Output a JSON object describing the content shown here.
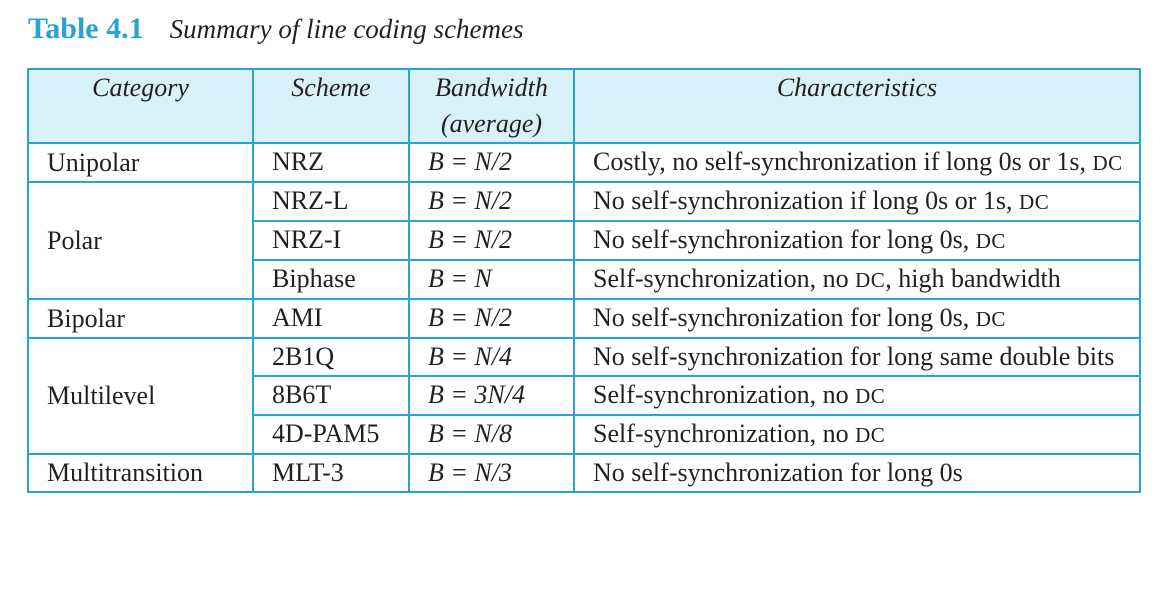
{
  "caption": {
    "label": "Table 4.1",
    "title": "Summary of line coding schemes"
  },
  "headers": {
    "category": "Category",
    "scheme": "Scheme",
    "bandwidth_line1": "Bandwidth",
    "bandwidth_line2": "(average)",
    "characteristics": "Characteristics"
  },
  "dc": "DC",
  "rows": [
    {
      "category": "Unipolar",
      "scheme": "NRZ",
      "bandwidth": "B = N/2",
      "text": "Costly, no self-synchronization if long 0s or 1s,"
    },
    {
      "category": "Polar",
      "scheme": "NRZ-L",
      "bandwidth": "B = N/2",
      "text": "No self-synchronization if long 0s or 1s,"
    },
    {
      "scheme": "NRZ-I",
      "bandwidth": "B = N/2",
      "text": "No self-synchronization for long 0s,"
    },
    {
      "scheme": "Biphase",
      "bandwidth": "B = N",
      "text_before": "Self-synchronization, no",
      "text_after": ", high bandwidth"
    },
    {
      "category": "Bipolar",
      "scheme": "AMI",
      "bandwidth": "B = N/2",
      "text": "No self-synchronization for long 0s,"
    },
    {
      "category": "Multilevel",
      "scheme": "2B1Q",
      "bandwidth": "B = N/4",
      "text": "No self-synchronization for long same double bits"
    },
    {
      "scheme": "8B6T",
      "bandwidth": "B = 3N/4",
      "text": "Self-synchronization, no"
    },
    {
      "scheme": "4D-PAM5",
      "bandwidth": "B = N/8",
      "text": "Self-synchronization, no"
    },
    {
      "category": "Multitransition",
      "scheme": "MLT-3",
      "bandwidth": "B = N/3",
      "text": "No self-synchronization for long 0s"
    }
  ]
}
